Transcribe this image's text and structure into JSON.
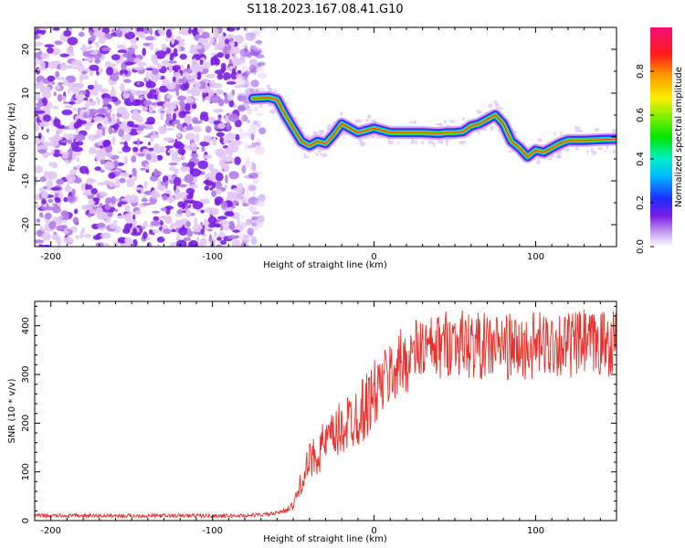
{
  "title": "S118.2023.167.08.41.G10",
  "colors": {
    "snr_line": "#e8302a",
    "axis": "#000000",
    "speckle_light": "#e2c8f5",
    "speckle_mid": "#b27be8",
    "speckle_dark": "#7b1fe6"
  },
  "chart_data": [
    {
      "id": "spectrogram",
      "type": "heatmap",
      "xlabel": "Height of straight line (km)",
      "ylabel": "Frequency (Hz)",
      "xlim": [
        -210,
        150
      ],
      "ylim": [
        -25,
        25
      ],
      "xticks": [
        -200,
        -100,
        0,
        100
      ],
      "yticks": [
        -20,
        -10,
        0,
        10,
        20
      ],
      "noise_region_x": [
        -210,
        -75
      ],
      "ridge": {
        "x": [
          -75,
          -65,
          -60,
          -55,
          -50,
          -45,
          -40,
          -35,
          -30,
          -25,
          -20,
          -15,
          -10,
          -5,
          0,
          5,
          10,
          20,
          30,
          40,
          45,
          50,
          55,
          60,
          65,
          70,
          75,
          80,
          85,
          90,
          95,
          100,
          105,
          110,
          115,
          120,
          130,
          140,
          150
        ],
        "y": [
          8.8,
          9.0,
          8.5,
          5.0,
          2.0,
          -1.0,
          -2.0,
          -1.0,
          -1.5,
          0.5,
          3.0,
          2.0,
          1.0,
          1.5,
          2.0,
          1.5,
          1.0,
          1.0,
          1.0,
          0.8,
          1.0,
          1.0,
          1.2,
          2.5,
          3.0,
          4.0,
          5.0,
          3.0,
          -1.0,
          -2.5,
          -4.5,
          -3.0,
          -3.5,
          -2.5,
          -1.5,
          -0.8,
          -0.8,
          -0.6,
          -0.5
        ]
      },
      "colorbar": {
        "label": "Normalized spectral amplitude",
        "range": [
          0,
          1
        ],
        "ticks": [
          0.0,
          0.2,
          0.4,
          0.6,
          0.8
        ],
        "tick_labels": [
          "0.0",
          "0.2",
          "0.4",
          "0.6",
          "0.8"
        ]
      }
    },
    {
      "id": "snr",
      "type": "line",
      "xlabel": "Height of straight line (km)",
      "ylabel": "SNR (10 * v/v)",
      "xlim": [
        -210,
        150
      ],
      "ylim": [
        0,
        450
      ],
      "xticks": [
        -200,
        -100,
        0,
        100
      ],
      "yticks": [
        0,
        100,
        200,
        300,
        400
      ],
      "series": [
        {
          "name": "SNR",
          "x": [
            -210,
            -80,
            -70,
            -60,
            -50,
            -45,
            -40,
            -35,
            -30,
            -25,
            -20,
            -15,
            -10,
            -5,
            0,
            5,
            10,
            15,
            20,
            25,
            30,
            35,
            40,
            45,
            50,
            55,
            60,
            65,
            70,
            75,
            80,
            85,
            90,
            95,
            100,
            105,
            110,
            115,
            120,
            125,
            130,
            135,
            140,
            145,
            150
          ],
          "y": [
            10,
            10,
            12,
            15,
            30,
            80,
            120,
            140,
            160,
            170,
            190,
            205,
            220,
            235,
            260,
            280,
            300,
            320,
            330,
            345,
            355,
            350,
            355,
            365,
            370,
            365,
            360,
            360,
            355,
            360,
            360,
            355,
            350,
            355,
            360,
            360,
            365,
            365,
            360,
            360,
            365,
            360,
            365,
            365,
            370
          ]
        }
      ]
    }
  ]
}
